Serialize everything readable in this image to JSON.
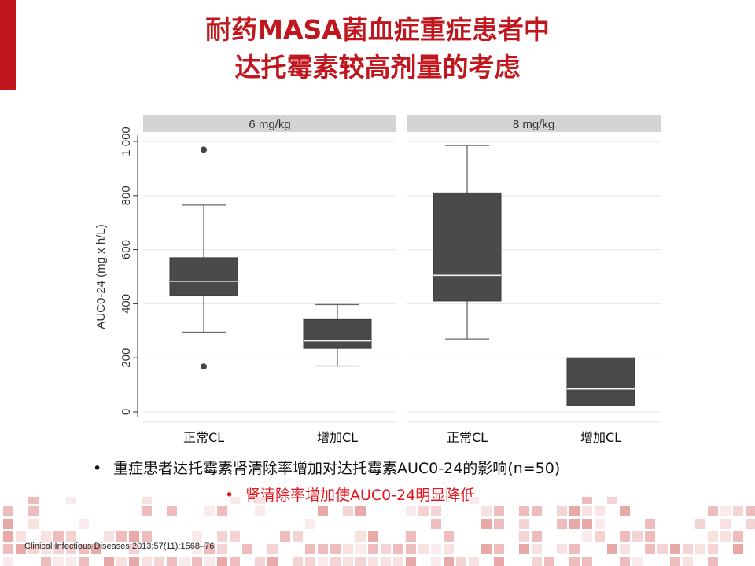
{
  "slide": {
    "title_line1": "耐药MASA菌血症重症患者中",
    "title_line2": "达托霉素较高剂量的考虑",
    "bullets": [
      {
        "marker": "•",
        "text": "重症患者达托霉素肾清除率增加对达托霉素AUC0-24的影响(n=50)"
      },
      {
        "marker": "•",
        "text": "肾清除率增加使AUC0-24明显降低"
      }
    ],
    "citation": "Clinical Infectious Diseases 2013;57(11):1568–76",
    "colors": {
      "accent": "#c0161d",
      "highlight_text": "#e3161f",
      "box_fill": "#4a4a4a",
      "panel_header": "#d4d4d4"
    }
  },
  "chart_data": {
    "type": "boxplot",
    "ylabel": "AUC0-24 (mg x h/L)",
    "yticks": [
      0,
      200,
      400,
      600,
      800,
      "1 000"
    ],
    "ylim": [
      0,
      1000
    ],
    "grid": true,
    "panels": [
      {
        "label": "6 mg/kg",
        "groups": [
          {
            "category": "正常CL",
            "whisker_low": 295,
            "q1": 430,
            "median": 483,
            "q3": 570,
            "whisker_high": 765,
            "outliers": [
              970,
              168
            ]
          },
          {
            "category": "增加CL",
            "whisker_low": 170,
            "q1": 235,
            "median": 263,
            "q3": 342,
            "whisker_high": 397,
            "outliers": []
          }
        ]
      },
      {
        "label": "8 mg/kg",
        "groups": [
          {
            "category": "正常CL",
            "whisker_low": 270,
            "q1": 410,
            "median": 505,
            "q3": 810,
            "whisker_high": 985,
            "outliers": []
          },
          {
            "category": "增加CL",
            "whisker_low": 25,
            "q1": 25,
            "median": 85,
            "q3": 200,
            "whisker_high": 200,
            "outliers": []
          }
        ]
      }
    ]
  }
}
